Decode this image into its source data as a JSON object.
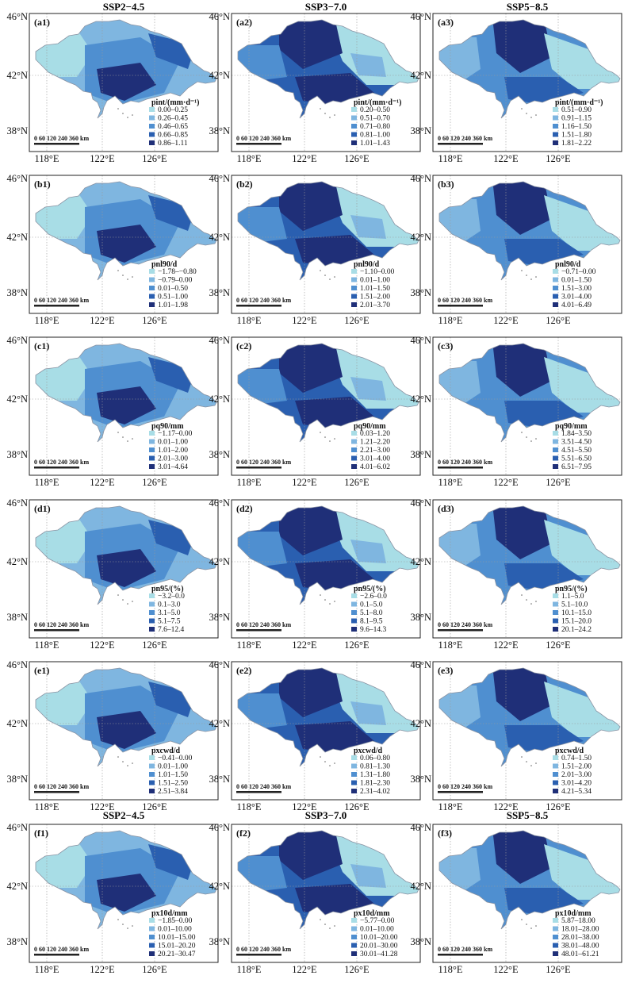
{
  "figure": {
    "top_headers": [
      "SSP2−4.5",
      "SSP3−7.0",
      "SSP5−8.5"
    ],
    "bottom_headers": [
      "SSP2−4.5",
      "SSP3−7.0",
      "SSP5−8.5"
    ],
    "y_ticks": [
      "46°N",
      "42°N",
      "38°N"
    ],
    "x_ticks": [
      "118°E",
      "122°E",
      "126°E"
    ],
    "scale_bar": "0 60 120 240 360 km",
    "colors": [
      "#a8dde6",
      "#7fb6e0",
      "#4f8fd0",
      "#2a5fb0",
      "#1f2f78"
    ]
  },
  "rows": [
    {
      "title": "pint/(mm·d⁻¹)",
      "panels": [
        {
          "label": "(a1)",
          "classes": [
            "0.00–0.25",
            "0.26–0.45",
            "0.46–0.65",
            "0.66–0.85",
            "0.86–1.11"
          ]
        },
        {
          "label": "(a2)",
          "classes": [
            "0.20–0.50",
            "0.51–0.70",
            "0.71–0.80",
            "0.81–1.00",
            "1.01–1.43"
          ]
        },
        {
          "label": "(a3)",
          "classes": [
            "0.51–0.90",
            "0.91–1.15",
            "1.16–1.50",
            "1.51–1.80",
            "1.81–2.22"
          ]
        }
      ]
    },
    {
      "title": "pnl90/d",
      "panels": [
        {
          "label": "(b1)",
          "classes": [
            "−1.78–−0.80",
            "−0.79–0.00",
            "0.01–0.50",
            "0.51–1.00",
            "1.01–1.98"
          ]
        },
        {
          "label": "(b2)",
          "classes": [
            "−1.10–0.00",
            "0.01–1.00",
            "1.01–1.50",
            "1.51–2.00",
            "2.01–3.70"
          ]
        },
        {
          "label": "(b3)",
          "classes": [
            "−0.71–0.00",
            "0.01–1.50",
            "1.51–3.00",
            "3.01–4.00",
            "4.01–6.49"
          ]
        }
      ]
    },
    {
      "title": "pq90/mm",
      "panels": [
        {
          "label": "(c1)",
          "classes": [
            "−1.17–0.00",
            "0.01–1.00",
            "1.01–2.00",
            "2.01–3.00",
            "3.01–4.64"
          ]
        },
        {
          "label": "(c2)",
          "classes": [
            "0.03–1.20",
            "1.21–2.20",
            "2.21–3.00",
            "3.01–4.00",
            "4.01–6.02"
          ]
        },
        {
          "label": "(c3)",
          "classes": [
            "1.84–3.50",
            "3.51–4.50",
            "4.51–5.50",
            "5.51–6.50",
            "6.51–7.95"
          ]
        }
      ]
    },
    {
      "title": "pn95/(%)",
      "panels": [
        {
          "label": "(d1)",
          "classes": [
            "−3.2–0.0",
            "0.1–3.0",
            "3.1–5.0",
            "5.1–7.5",
            "7.6–12.4"
          ]
        },
        {
          "label": "(d2)",
          "classes": [
            "−2.6–0.0",
            "0.1–5.0",
            "5.1–8.0",
            "8.1–9.5",
            "9.6–14.3"
          ]
        },
        {
          "label": "(d3)",
          "classes": [
            "1.1–5.0",
            "5.1–10.0",
            "10.1–15.0",
            "15.1–20.0",
            "20.1–24.2"
          ]
        }
      ]
    },
    {
      "title": "pxcwd/d",
      "panels": [
        {
          "label": "(e1)",
          "classes": [
            "−0.41–0.00",
            "0.01–1.00",
            "1.01–1.50",
            "1.51–2.50",
            "2.51–3.84"
          ]
        },
        {
          "label": "(e2)",
          "classes": [
            "0.06–0.80",
            "0.81–1.30",
            "1.31–1.80",
            "1.81–2.30",
            "2.31–4.02"
          ]
        },
        {
          "label": "(e3)",
          "classes": [
            "0.74–1.50",
            "1.51–2.00",
            "2.01–3.00",
            "3.01–4.20",
            "4.21–5.34"
          ]
        }
      ]
    },
    {
      "title": "px10d/mm",
      "panels": [
        {
          "label": "(f1)",
          "classes": [
            "−1.85–0.00",
            "0.01–10.00",
            "10.01–15.00",
            "15.01–20.20",
            "20.21–30.47"
          ]
        },
        {
          "label": "(f2)",
          "classes": [
            "−5.77–0.00",
            "0.01–10.00",
            "10.01–20.00",
            "20.01–30.00",
            "30.01–41.28"
          ]
        },
        {
          "label": "(f3)",
          "classes": [
            "5.87–18.00",
            "18.01–28.00",
            "28.01–38.00",
            "38.01–48.00",
            "48.01–61.21"
          ]
        }
      ]
    }
  ]
}
